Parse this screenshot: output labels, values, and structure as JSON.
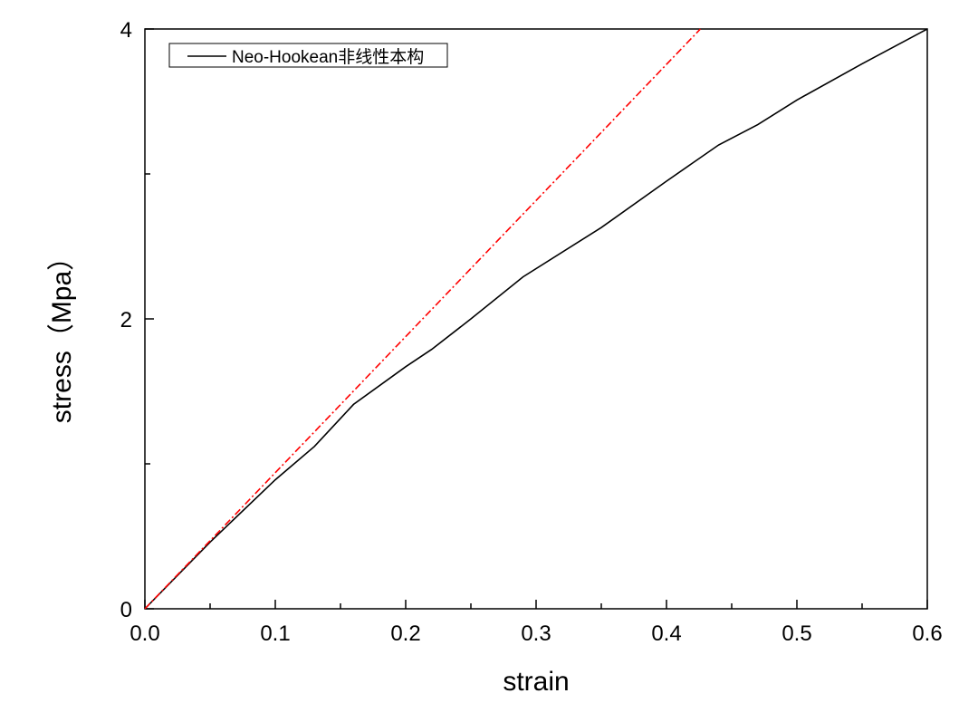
{
  "chart_data": {
    "type": "line",
    "title": "",
    "xlabel": "strain",
    "ylabel": "stress（Mpa）",
    "xlim": [
      0,
      0.6
    ],
    "ylim": [
      0,
      4
    ],
    "x_ticks": [
      "0.0",
      "0.1",
      "0.2",
      "0.3",
      "0.4",
      "0.5",
      "0.6"
    ],
    "x_tick_values": [
      0,
      0.1,
      0.2,
      0.3,
      0.4,
      0.5,
      0.6
    ],
    "x_minor_ticks": [
      0.05,
      0.15,
      0.25,
      0.35,
      0.45,
      0.55
    ],
    "y_ticks": [
      "0",
      "2",
      "4"
    ],
    "y_tick_values": [
      0,
      2,
      4
    ],
    "y_minor_ticks": [
      1,
      3
    ],
    "grid": false,
    "legend_position": "top-left",
    "series": [
      {
        "name": "Neo-Hookean非线性本构",
        "color": "#000000",
        "style": "solid",
        "in_legend": true,
        "x": [
          0,
          0.05,
          0.1,
          0.13,
          0.16,
          0.2,
          0.22,
          0.25,
          0.29,
          0.35,
          0.4,
          0.44,
          0.47,
          0.5,
          0.55,
          0.6
        ],
        "y": [
          0,
          0.46,
          0.89,
          1.12,
          1.41,
          1.67,
          1.79,
          2.0,
          2.29,
          2.63,
          2.95,
          3.2,
          3.34,
          3.51,
          3.76,
          4.0
        ]
      },
      {
        "name": "",
        "color": "#ff0000",
        "style": "dashdot",
        "in_legend": false,
        "x": [
          0,
          0.426
        ],
        "y": [
          0,
          4.0
        ]
      }
    ]
  }
}
